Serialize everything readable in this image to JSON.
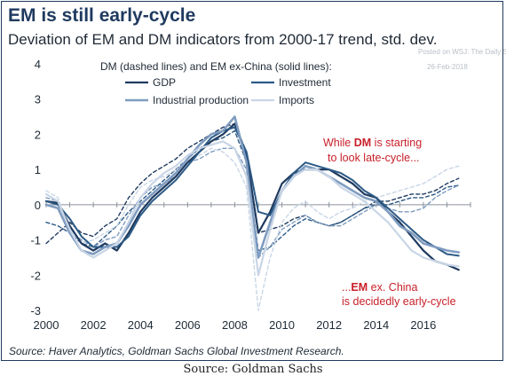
{
  "title": "EM is still early-cycle",
  "subtitle": "Deviation of EM and DM indicators from 2000-17 trend, std. dev.",
  "watermark": {
    "line1": "Posted on WSJ: The Daily Shot",
    "line2": "26-Feb-2018"
  },
  "source": "Source: Haver Analytics, Goldman Sachs Global Investment Research.",
  "caption": "Source: Goldman Sachs",
  "colors": {
    "gdp": "#1f3a5f",
    "investment": "#2c5a86",
    "ip": "#7f9cc0",
    "imports": "#c9d6e6",
    "annotation": "#c8202a"
  },
  "chart_data": {
    "type": "line",
    "legend_title": "DM (dashed lines) and EM ex-China (solid lines):",
    "legend": [
      "GDP",
      "Investment",
      "Industrial production",
      "Imports"
    ],
    "xlim": [
      2000,
      2018
    ],
    "ylim": [
      -3,
      4
    ],
    "x_ticks": [
      2000,
      2002,
      2004,
      2006,
      2008,
      2010,
      2012,
      2014,
      2016
    ],
    "y_ticks": [
      -3,
      -2,
      -1,
      0,
      1,
      2,
      3,
      4
    ],
    "grid": false,
    "annotations": {
      "dm_line1_a": "While ",
      "dm_line1_b": "DM",
      "dm_line1_c": " is starting",
      "dm_line2": "to look late-cycle...",
      "em_line1_a": "...",
      "em_line1_b": "EM",
      "em_line1_c": " ex. China",
      "em_line2": "is decidedly early-cycle"
    },
    "x": [
      2000,
      2000.5,
      2001,
      2001.5,
      2002,
      2002.5,
      2003,
      2003.5,
      2004,
      2004.5,
      2005,
      2005.5,
      2006,
      2006.5,
      2007,
      2007.5,
      2008,
      2008.5,
      2009,
      2009.5,
      2010,
      2010.5,
      2011,
      2011.5,
      2012,
      2012.5,
      2013,
      2013.5,
      2014,
      2014.5,
      2015,
      2015.5,
      2016,
      2016.5,
      2017,
      2017.5
    ],
    "series": [
      {
        "name": "GDP",
        "group": "EM ex-China",
        "style": "solid",
        "values": [
          0.1,
          0.05,
          -0.6,
          -1.1,
          -1.3,
          -1.1,
          -1.3,
          -0.8,
          -0.2,
          0.2,
          0.5,
          0.8,
          1.2,
          1.5,
          1.8,
          2.0,
          2.3,
          1.4,
          -0.8,
          -0.2,
          0.6,
          0.9,
          1.0,
          1.0,
          1.0,
          0.8,
          0.6,
          0.3,
          0.2,
          -0.2,
          -0.5,
          -0.9,
          -1.3,
          -1.6,
          -1.7,
          -1.85
        ]
      },
      {
        "name": "Investment",
        "group": "EM ex-China",
        "style": "solid",
        "values": [
          0.1,
          0.0,
          -0.4,
          -0.9,
          -1.2,
          -1.2,
          -1.2,
          -0.9,
          -0.3,
          0.1,
          0.4,
          0.7,
          1.1,
          1.5,
          1.9,
          2.1,
          2.2,
          1.5,
          -0.2,
          -0.3,
          0.4,
          0.9,
          1.2,
          1.1,
          1.0,
          0.9,
          0.7,
          0.4,
          0.2,
          -0.1,
          -0.4,
          -0.7,
          -1.0,
          -1.2,
          -1.4,
          -1.45
        ]
      },
      {
        "name": "Industrial production",
        "group": "EM ex-China",
        "style": "solid",
        "values": [
          0.0,
          -0.1,
          -0.8,
          -1.3,
          -1.4,
          -1.2,
          -1.1,
          -0.6,
          0.0,
          0.3,
          0.6,
          0.9,
          1.3,
          1.7,
          2.0,
          2.1,
          2.5,
          1.2,
          -1.5,
          -0.5,
          0.4,
          0.8,
          1.1,
          1.0,
          0.8,
          0.6,
          0.4,
          0.2,
          0.1,
          -0.2,
          -0.6,
          -0.8,
          -1.1,
          -1.2,
          -1.3,
          -1.35
        ]
      },
      {
        "name": "Imports",
        "group": "EM ex-China",
        "style": "solid",
        "values": [
          0.3,
          0.1,
          -0.7,
          -1.3,
          -1.5,
          -1.3,
          -1.1,
          -0.5,
          0.2,
          0.6,
          0.9,
          1.1,
          1.4,
          1.6,
          1.7,
          1.8,
          1.6,
          0.8,
          -2.0,
          -0.7,
          0.4,
          0.8,
          1.0,
          1.0,
          0.8,
          0.5,
          0.3,
          0.1,
          -0.2,
          -0.5,
          -0.9,
          -1.3,
          -1.5,
          -1.6,
          -1.7,
          -1.75
        ]
      },
      {
        "name": "GDP",
        "group": "DM",
        "style": "dashed",
        "values": [
          -1.1,
          -0.8,
          -0.5,
          -0.8,
          -0.9,
          -0.6,
          -0.4,
          0.2,
          0.6,
          0.9,
          1.1,
          1.3,
          1.6,
          1.8,
          2.0,
          2.2,
          2.3,
          1.5,
          -0.8,
          -0.7,
          -0.6,
          -0.4,
          -0.3,
          -0.5,
          -0.6,
          -0.5,
          -0.3,
          -0.1,
          0.1,
          0.1,
          0.2,
          0.3,
          0.3,
          0.4,
          0.6,
          0.75
        ]
      },
      {
        "name": "Investment",
        "group": "DM",
        "style": "dashed",
        "values": [
          -0.5,
          -0.6,
          -0.8,
          -1.1,
          -1.2,
          -0.9,
          -0.6,
          -0.2,
          0.1,
          0.4,
          0.7,
          1.0,
          1.3,
          1.6,
          1.8,
          1.9,
          2.1,
          1.2,
          -1.3,
          -1.2,
          -0.9,
          -0.6,
          -0.4,
          -0.5,
          -0.6,
          -0.5,
          -0.3,
          -0.1,
          0.0,
          0.0,
          0.1,
          0.2,
          0.2,
          0.3,
          0.5,
          0.55
        ]
      },
      {
        "name": "Industrial production",
        "group": "DM",
        "style": "dashed",
        "values": [
          0.2,
          0.1,
          -0.7,
          -1.0,
          -1.2,
          -1.0,
          -0.9,
          -0.3,
          0.2,
          0.5,
          0.6,
          0.8,
          1.2,
          1.3,
          1.5,
          1.6,
          1.6,
          1.0,
          -1.5,
          -1.2,
          -0.7,
          -0.5,
          -0.3,
          -0.5,
          -0.6,
          -0.6,
          -0.4,
          -0.2,
          0.0,
          -0.1,
          -0.2,
          -0.2,
          -0.1,
          0.2,
          0.4,
          0.55
        ]
      },
      {
        "name": "Imports",
        "group": "DM",
        "style": "dashed",
        "values": [
          0.4,
          0.2,
          -0.7,
          -1.1,
          -1.0,
          -0.8,
          -0.6,
          0.0,
          0.5,
          0.7,
          0.8,
          1.0,
          1.2,
          1.4,
          1.6,
          1.5,
          1.2,
          0.5,
          -3.0,
          -1.5,
          -0.5,
          -0.1,
          0.1,
          -0.2,
          -0.4,
          -0.2,
          -0.1,
          0.1,
          0.2,
          0.3,
          0.4,
          0.5,
          0.6,
          0.8,
          1.0,
          1.1
        ]
      }
    ]
  }
}
